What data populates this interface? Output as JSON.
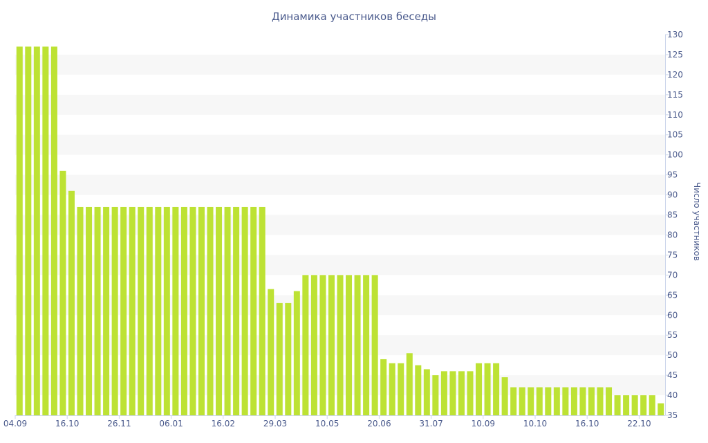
{
  "chart_data": {
    "type": "bar",
    "title": "Динамика участников беседы",
    "ylabel": "Число участников",
    "xlabel": "",
    "ylim": [
      35,
      130
    ],
    "y_ticks": [
      35,
      40,
      45,
      50,
      55,
      60,
      65,
      70,
      75,
      80,
      85,
      90,
      95,
      100,
      105,
      110,
      115,
      120,
      125,
      130
    ],
    "y_axis_side": "right",
    "grid": "alternating horizontal bands",
    "x_tick_labels": [
      {
        "label": "04.09",
        "index": 0
      },
      {
        "label": "16.10",
        "index": 6
      },
      {
        "label": "26.11",
        "index": 12
      },
      {
        "label": "06.01",
        "index": 18
      },
      {
        "label": "16.02",
        "index": 24
      },
      {
        "label": "29.03",
        "index": 30
      },
      {
        "label": "10.05",
        "index": 36
      },
      {
        "label": "20.06",
        "index": 42
      },
      {
        "label": "31.07",
        "index": 48
      },
      {
        "label": "10.09",
        "index": 54
      },
      {
        "label": "10.10",
        "index": 60
      },
      {
        "label": "16.10",
        "index": 66
      },
      {
        "label": "22.10",
        "index": 72
      }
    ],
    "values": [
      127,
      127,
      127,
      127,
      127,
      96,
      91,
      87,
      87,
      87,
      87,
      87,
      87,
      87,
      87,
      87,
      87,
      87,
      87,
      87,
      87,
      87,
      87,
      87,
      87,
      87,
      87,
      87,
      87,
      66.5,
      63,
      63,
      66,
      70,
      70,
      70,
      70,
      70,
      70,
      70,
      70,
      70,
      49,
      48,
      48,
      50.5,
      47.5,
      46.5,
      45,
      46,
      46,
      46,
      46,
      48,
      48,
      48,
      44.5,
      42,
      42,
      42,
      42,
      42,
      42,
      42,
      42,
      42,
      42,
      42,
      42,
      40,
      40,
      40,
      40,
      40,
      38
    ],
    "colors": {
      "bar": "#bde234",
      "band": "#f7f7f7",
      "axis": "#ccd6eb",
      "text": "#4a5a8c"
    }
  }
}
